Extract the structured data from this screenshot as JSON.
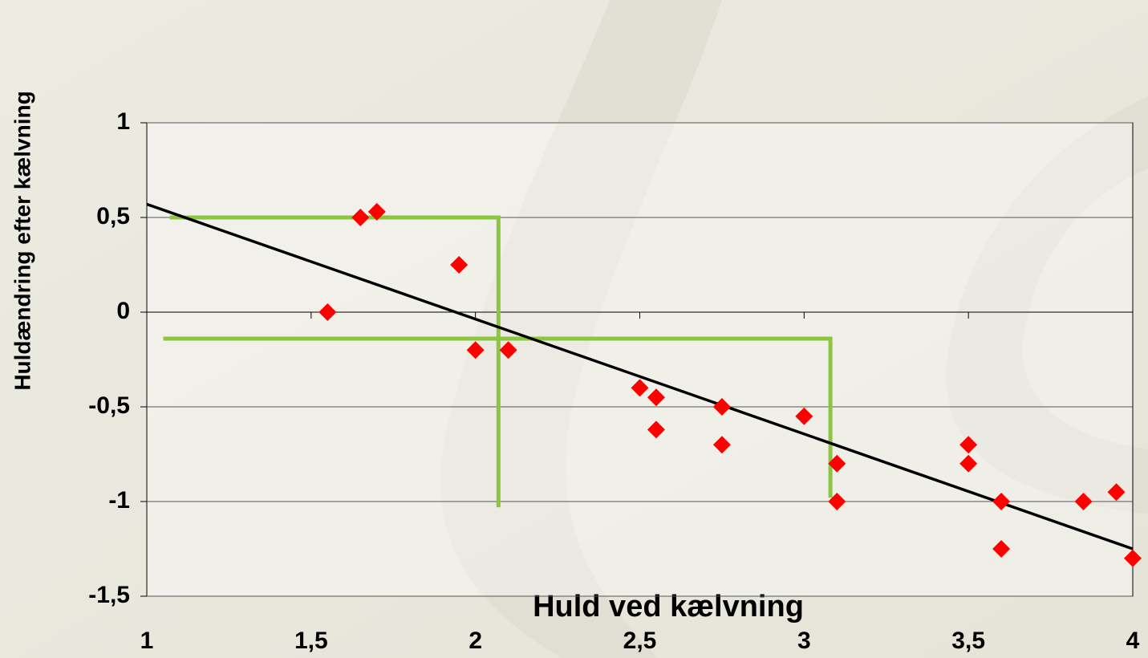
{
  "chart_data": {
    "type": "scatter",
    "x_label": "Huld ved kælvning",
    "y_label": "Huldændring efter kælvning",
    "xlim": [
      1,
      4
    ],
    "ylim": [
      -1.5,
      1
    ],
    "xticks": [
      1,
      {
        "value": 1.5,
        "label": "1,5"
      },
      2,
      {
        "value": 2.5,
        "label": "2,5"
      },
      3,
      {
        "value": 3.5,
        "label": "3,5"
      },
      4
    ],
    "yticks": [
      {
        "value": -1.5,
        "label": "-1,5"
      },
      -1,
      {
        "value": -0.5,
        "label": "-0,5"
      },
      0,
      {
        "value": 0.5,
        "label": "0,5"
      },
      1
    ],
    "grid": true,
    "series": [
      {
        "color": "#ff0000",
        "x": [
          1.55,
          1.65,
          1.7,
          1.95,
          2.0,
          2.1,
          2.5,
          2.55,
          2.55,
          2.75,
          2.75,
          3.0,
          3.1,
          3.1,
          3.5,
          3.5,
          3.6,
          3.6,
          3.85,
          3.95,
          4.0
        ],
        "values": [
          0,
          0.5,
          0.53,
          0.25,
          -0.2,
          -0.2,
          -0.4,
          -0.45,
          -0.62,
          -0.5,
          -0.7,
          -0.55,
          -0.8,
          -1.0,
          -0.7,
          -0.8,
          -1.0,
          -1.25,
          -1.0,
          -0.95,
          -1.3
        ]
      }
    ],
    "trendline": {
      "color": "#000000",
      "x": [
        1,
        4
      ],
      "values": [
        0.57,
        -1.25
      ]
    },
    "guide_lines": [
      {
        "color": "#8cc63f",
        "x": [
          1.07,
          2.07,
          2.07
        ],
        "values": [
          0.5,
          0.5,
          -1.03
        ]
      },
      {
        "color": "#8cc63f",
        "x": [
          1.05,
          3.08,
          3.08
        ],
        "values": [
          -0.14,
          -0.14,
          -0.98
        ]
      }
    ]
  }
}
